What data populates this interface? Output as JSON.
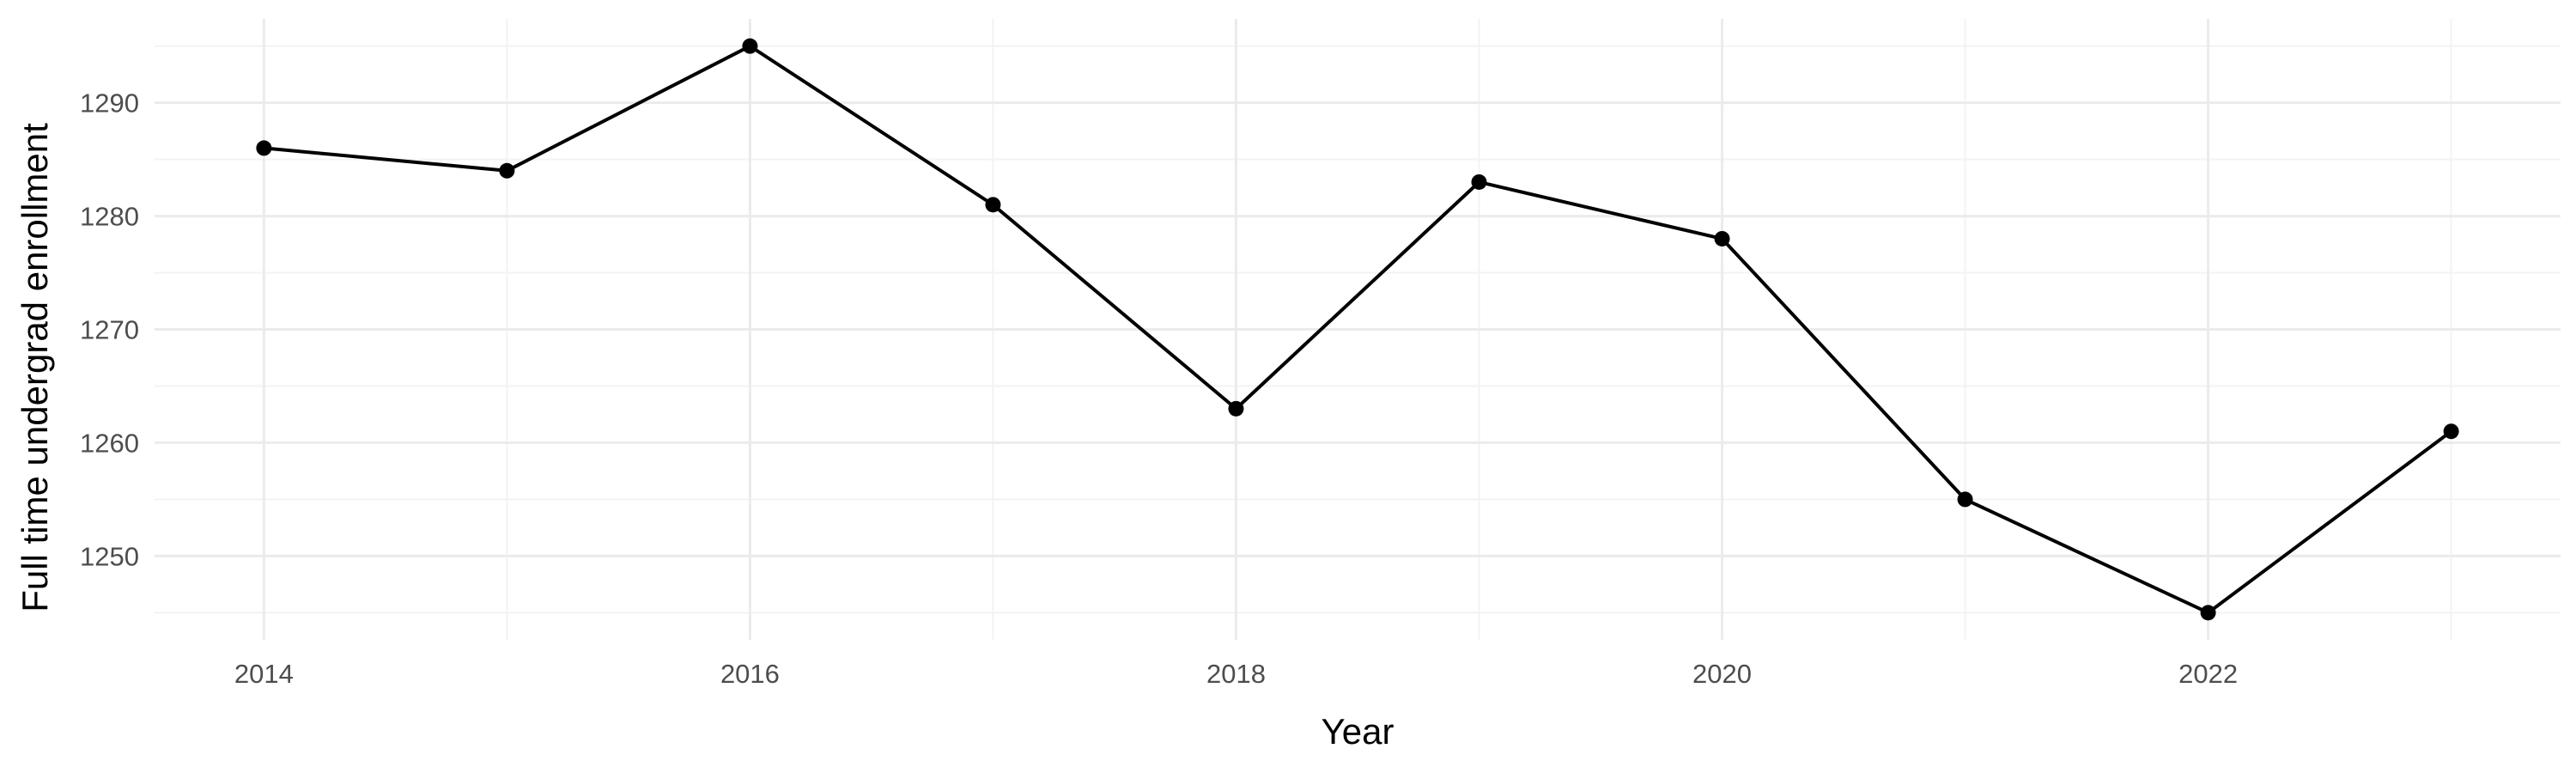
{
  "chart_data": {
    "type": "line",
    "title": "",
    "xlabel": "Year",
    "ylabel": "Full time undergrad enrollment",
    "x": [
      2014,
      2015,
      2016,
      2017,
      2018,
      2019,
      2020,
      2021,
      2022,
      2023
    ],
    "series": [
      {
        "values": [
          1286,
          1284,
          1295,
          1281,
          1263,
          1283,
          1278,
          1255,
          1245,
          1261
        ]
      }
    ],
    "xlim": [
      2013.55,
      2023.45
    ],
    "ylim": [
      1242.6,
      1297.4
    ],
    "x_ticks": [
      2014,
      2016,
      2018,
      2020,
      2022
    ],
    "y_ticks": [
      1250,
      1260,
      1270,
      1280,
      1290
    ],
    "x_tick_labels": [
      "2014",
      "2016",
      "2018",
      "2020",
      "2022"
    ],
    "y_tick_labels": [
      "1250",
      "1260",
      "1270",
      "1280",
      "1290"
    ],
    "grid": true,
    "legend": "none",
    "line_color": "#000000",
    "point_color": "#000000"
  }
}
